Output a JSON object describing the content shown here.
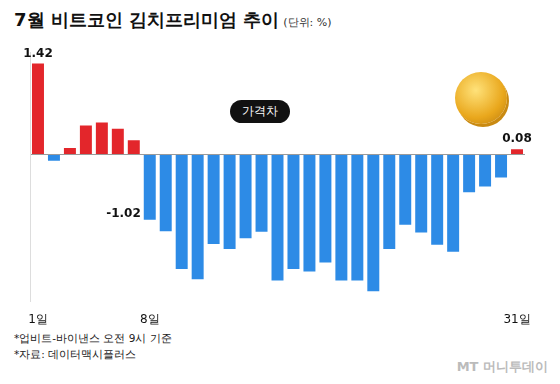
{
  "chart_data": {
    "type": "bar",
    "title": "7월 비트코인 김치프리미엄 추이",
    "subtitle": "(단위: %)",
    "annotations": [
      "가격차"
    ],
    "footnotes": [
      "*업비트-바이낸스 오전 9시 기준",
      "*자료: 데이터맥시플러스"
    ],
    "source_logo": "MT 머니투데이",
    "categories": [
      "1일",
      null,
      null,
      null,
      null,
      null,
      null,
      "8일",
      null,
      null,
      null,
      null,
      null,
      null,
      null,
      null,
      null,
      null,
      null,
      null,
      null,
      null,
      null,
      null,
      null,
      null,
      null,
      null,
      null,
      null,
      "31일"
    ],
    "values": [
      1.42,
      -0.1,
      0.1,
      0.45,
      0.5,
      0.4,
      0.22,
      -1.02,
      -1.2,
      -1.79,
      -1.95,
      -1.4,
      -1.48,
      -1.31,
      -1.21,
      -1.97,
      -1.79,
      -1.83,
      -1.69,
      -1.97,
      -1.97,
      -2.14,
      -1.48,
      -1.1,
      -1.22,
      -1.41,
      -1.52,
      -0.59,
      -0.5,
      -0.36,
      0.08
    ],
    "value_labels": [
      "1.42",
      null,
      null,
      null,
      null,
      null,
      null,
      "-1.02",
      null,
      null,
      null,
      null,
      null,
      null,
      null,
      null,
      null,
      null,
      null,
      null,
      null,
      null,
      null,
      null,
      null,
      null,
      null,
      null,
      null,
      null,
      "0.08"
    ],
    "colors": [
      "#e3262b",
      "#2d8be6",
      "#e3262b",
      "#e3262b",
      "#e3262b",
      "#e3262b",
      "#e3262b",
      "#2d8be6",
      "#2d8be6",
      "#2d8be6",
      "#2d8be6",
      "#2d8be6",
      "#2d8be6",
      "#2d8be6",
      "#2d8be6",
      "#2d8be6",
      "#2d8be6",
      "#2d8be6",
      "#2d8be6",
      "#2d8be6",
      "#2d8be6",
      "#2d8be6",
      "#2d8be6",
      "#2d8be6",
      "#2d8be6",
      "#2d8be6",
      "#2d8be6",
      "#2d8be6",
      "#2d8be6",
      "#2d8be6",
      "#e3262b"
    ],
    "ylim": [
      -2.3,
      1.6
    ],
    "yticks": [
      0
    ],
    "tick_labels": "x",
    "grid": false
  }
}
